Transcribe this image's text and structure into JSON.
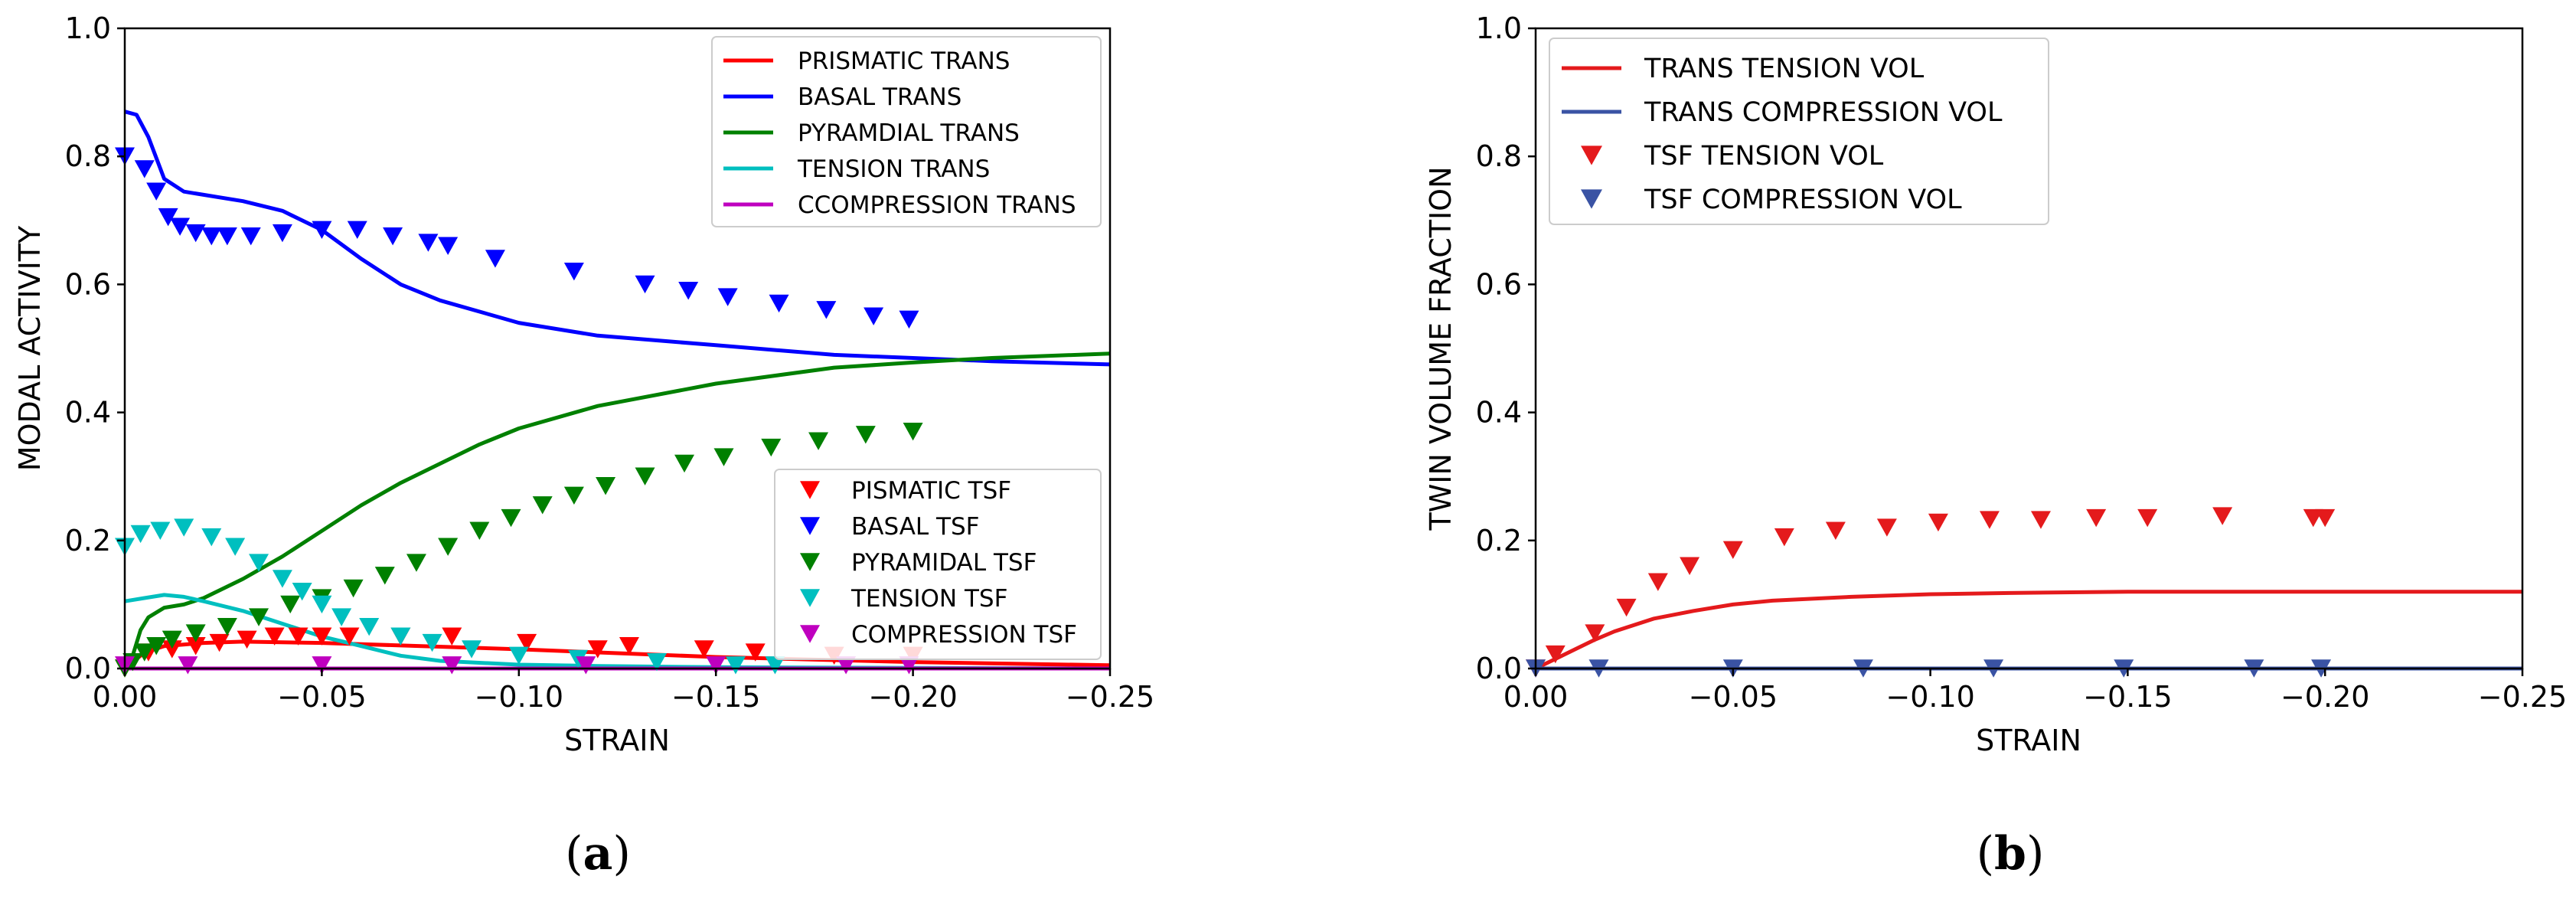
{
  "chart_data": [
    {
      "id": "a",
      "type": "line",
      "caption_letter": "a",
      "caption_open": "(",
      "caption_close": ")",
      "xlabel": "STRAIN",
      "ylabel": "MODAL ACTIVITY",
      "xlim": [
        0.0,
        -0.25
      ],
      "ylim": [
        0.0,
        1.0
      ],
      "xticks": [
        0.0,
        -0.05,
        -0.1,
        -0.15,
        -0.2,
        -0.25
      ],
      "xtick_labels": [
        "0.00",
        "−0.05",
        "−0.10",
        "−0.15",
        "−0.20",
        "−0.25"
      ],
      "yticks": [
        0.0,
        0.2,
        0.4,
        0.6,
        0.8,
        1.0
      ],
      "ytick_labels": [
        "0.0",
        "0.2",
        "0.4",
        "0.6",
        "0.8",
        "1.0"
      ],
      "legend_lines": {
        "position": "top-right",
        "entries": [
          "PRISMATIC TRANS",
          "BASAL TRANS",
          "PYRAMDIAL TRANS",
          "TENSION TRANS",
          "CCOMPRESSION TRANS"
        ]
      },
      "legend_markers": {
        "position": "lower-right",
        "entries": [
          "PISMATIC TSF",
          "BASAL TSF",
          "PYRAMIDAL TSF",
          "TENSION TSF",
          "COMPRESSION TSF"
        ]
      },
      "series": [
        {
          "name": "PRISMATIC TRANS",
          "kind": "line",
          "color": "#ff0000",
          "x": [
            0.0,
            -0.005,
            -0.01,
            -0.02,
            -0.03,
            -0.05,
            -0.07,
            -0.1,
            -0.15,
            -0.2,
            -0.25
          ],
          "y": [
            0.0,
            0.025,
            0.035,
            0.04,
            0.042,
            0.04,
            0.036,
            0.03,
            0.018,
            0.01,
            0.005
          ]
        },
        {
          "name": "BASAL TRANS",
          "kind": "line",
          "color": "#0000ff",
          "x": [
            0.0,
            -0.003,
            -0.006,
            -0.01,
            -0.015,
            -0.02,
            -0.03,
            -0.04,
            -0.05,
            -0.06,
            -0.07,
            -0.08,
            -0.1,
            -0.12,
            -0.15,
            -0.18,
            -0.2,
            -0.22,
            -0.25
          ],
          "y": [
            0.87,
            0.865,
            0.83,
            0.765,
            0.745,
            0.74,
            0.73,
            0.715,
            0.685,
            0.64,
            0.6,
            0.575,
            0.54,
            0.52,
            0.505,
            0.49,
            0.485,
            0.48,
            0.475
          ]
        },
        {
          "name": "PYRAMDIAL TRANS",
          "kind": "line",
          "color": "#008000",
          "x": [
            0.0,
            -0.002,
            -0.004,
            -0.006,
            -0.01,
            -0.015,
            -0.02,
            -0.03,
            -0.04,
            -0.05,
            -0.06,
            -0.07,
            -0.08,
            -0.09,
            -0.1,
            -0.12,
            -0.15,
            -0.18,
            -0.2,
            -0.22,
            -0.25
          ],
          "y": [
            0.0,
            0.02,
            0.06,
            0.08,
            0.095,
            0.1,
            0.11,
            0.14,
            0.175,
            0.215,
            0.255,
            0.29,
            0.32,
            0.35,
            0.375,
            0.41,
            0.445,
            0.47,
            0.478,
            0.485,
            0.492
          ]
        },
        {
          "name": "TENSION TRANS",
          "kind": "line",
          "color": "#00bfbf",
          "x": [
            0.0,
            -0.005,
            -0.01,
            -0.015,
            -0.02,
            -0.03,
            -0.04,
            -0.05,
            -0.06,
            -0.07,
            -0.08,
            -0.1,
            -0.12,
            -0.15,
            -0.2,
            -0.25
          ],
          "y": [
            0.105,
            0.11,
            0.115,
            0.112,
            0.105,
            0.09,
            0.07,
            0.05,
            0.035,
            0.02,
            0.012,
            0.006,
            0.004,
            0.002,
            0.001,
            0.0
          ]
        },
        {
          "name": "CCOMPRESSION TRANS",
          "kind": "line",
          "color": "#bf00bf",
          "x": [
            0.0,
            -0.25
          ],
          "y": [
            0.0,
            0.0
          ]
        },
        {
          "name": "PISMATIC TSF",
          "kind": "marker",
          "color": "#ff0000",
          "x": [
            0.0,
            -0.006,
            -0.012,
            -0.018,
            -0.024,
            -0.031,
            -0.038,
            -0.044,
            -0.05,
            -0.057,
            -0.07,
            -0.083,
            -0.102,
            -0.12,
            -0.128,
            -0.147,
            -0.16,
            -0.18,
            -0.2
          ],
          "y": [
            0.0,
            0.025,
            0.03,
            0.035,
            0.04,
            0.045,
            0.05,
            0.05,
            0.05,
            0.05,
            0.05,
            0.05,
            0.04,
            0.03,
            0.035,
            0.03,
            0.025,
            0.02,
            0.02
          ]
        },
        {
          "name": "BASAL TSF",
          "kind": "marker",
          "color": "#0000ff",
          "x": [
            0.0,
            -0.005,
            -0.008,
            -0.011,
            -0.014,
            -0.018,
            -0.022,
            -0.026,
            -0.032,
            -0.04,
            -0.05,
            -0.059,
            -0.068,
            -0.077,
            -0.082,
            -0.094,
            -0.114,
            -0.132,
            -0.143,
            -0.153,
            -0.166,
            -0.178,
            -0.19,
            -0.199
          ],
          "y": [
            0.8,
            0.78,
            0.745,
            0.705,
            0.69,
            0.68,
            0.675,
            0.675,
            0.675,
            0.68,
            0.685,
            0.685,
            0.675,
            0.665,
            0.66,
            0.64,
            0.62,
            0.6,
            0.59,
            0.58,
            0.57,
            0.56,
            0.55,
            0.545
          ]
        },
        {
          "name": "PYRAMIDAL TSF",
          "kind": "marker",
          "color": "#008000",
          "x": [
            0.0,
            -0.002,
            -0.005,
            -0.008,
            -0.012,
            -0.018,
            -0.026,
            -0.034,
            -0.042,
            -0.05,
            -0.058,
            -0.066,
            -0.074,
            -0.082,
            -0.09,
            -0.098,
            -0.106,
            -0.114,
            -0.122,
            -0.132,
            -0.142,
            -0.152,
            -0.164,
            -0.176,
            -0.188,
            -0.2
          ],
          "y": [
            0.0,
            0.01,
            0.025,
            0.035,
            0.045,
            0.055,
            0.065,
            0.08,
            0.1,
            0.11,
            0.125,
            0.145,
            0.165,
            0.19,
            0.215,
            0.235,
            0.255,
            0.27,
            0.285,
            0.3,
            0.32,
            0.33,
            0.345,
            0.355,
            0.365,
            0.37
          ]
        },
        {
          "name": "TENSION TSF",
          "kind": "marker",
          "color": "#00bfbf",
          "x": [
            0.0,
            -0.004,
            -0.009,
            -0.015,
            -0.022,
            -0.028,
            -0.034,
            -0.04,
            -0.045,
            -0.05,
            -0.055,
            -0.062,
            -0.07,
            -0.078,
            -0.088,
            -0.1,
            -0.115,
            -0.135,
            -0.155,
            -0.165
          ],
          "y": [
            0.19,
            0.21,
            0.215,
            0.22,
            0.205,
            0.19,
            0.165,
            0.14,
            0.12,
            0.1,
            0.08,
            0.065,
            0.05,
            0.04,
            0.03,
            0.02,
            0.015,
            0.01,
            0.005,
            0.005
          ]
        },
        {
          "name": "COMPRESSION TSF",
          "kind": "marker",
          "color": "#bf00bf",
          "x": [
            0.0,
            -0.016,
            -0.05,
            -0.083,
            -0.117,
            -0.15,
            -0.183,
            -0.199
          ],
          "y": [
            0.005,
            0.005,
            0.005,
            0.005,
            0.005,
            0.005,
            0.005,
            0.005
          ]
        }
      ]
    },
    {
      "id": "b",
      "type": "line",
      "caption_letter": "b",
      "caption_open": "(",
      "caption_close": ")",
      "xlabel": "STRAIN",
      "ylabel": "TWIN VOLUME FRACTION",
      "xlim": [
        0.0,
        -0.25
      ],
      "ylim": [
        0.0,
        1.0
      ],
      "xticks": [
        0.0,
        -0.05,
        -0.1,
        -0.15,
        -0.2,
        -0.25
      ],
      "xtick_labels": [
        "0.00",
        "−0.05",
        "−0.10",
        "−0.15",
        "−0.20",
        "−0.25"
      ],
      "yticks": [
        0.0,
        0.2,
        0.4,
        0.6,
        0.8,
        1.0
      ],
      "ytick_labels": [
        "0.0",
        "0.2",
        "0.4",
        "0.6",
        "0.8",
        "1.0"
      ],
      "legend": {
        "position": "top-left",
        "entries": [
          "TRANS TENSION VOL",
          "TRANS COMPRESSION VOL",
          "TSF TENSION VOL",
          "TSF COMPRESSION VOL"
        ]
      },
      "series": [
        {
          "name": "TRANS TENSION VOL",
          "kind": "line",
          "color": "#e41a1c",
          "x": [
            0.0,
            -0.005,
            -0.01,
            -0.015,
            -0.02,
            -0.03,
            -0.04,
            -0.05,
            -0.06,
            -0.08,
            -0.1,
            -0.12,
            -0.15,
            -0.2,
            -0.25
          ],
          "y": [
            0.0,
            0.015,
            0.03,
            0.045,
            0.058,
            0.078,
            0.09,
            0.1,
            0.106,
            0.112,
            0.116,
            0.118,
            0.12,
            0.12,
            0.12
          ]
        },
        {
          "name": "TRANS COMPRESSION VOL",
          "kind": "line",
          "color": "#3a53a4",
          "x": [
            0.0,
            -0.25
          ],
          "y": [
            0.0,
            0.0
          ]
        },
        {
          "name": "TSF TENSION VOL",
          "kind": "marker",
          "color": "#e41a1c",
          "x": [
            0.0,
            -0.005,
            -0.015,
            -0.023,
            -0.031,
            -0.039,
            -0.05,
            -0.063,
            -0.076,
            -0.089,
            -0.102,
            -0.115,
            -0.128,
            -0.142,
            -0.155,
            -0.174,
            -0.197,
            -0.2
          ],
          "y": [
            0.0,
            0.022,
            0.055,
            0.095,
            0.135,
            0.16,
            0.185,
            0.205,
            0.215,
            0.22,
            0.228,
            0.232,
            0.232,
            0.235,
            0.235,
            0.238,
            0.235,
            0.235
          ]
        },
        {
          "name": "TSF COMPRESSION VOL",
          "kind": "marker",
          "color": "#3a53a4",
          "x": [
            0.0,
            -0.016,
            -0.05,
            -0.083,
            -0.116,
            -0.149,
            -0.182,
            -0.199
          ],
          "y": [
            0.0,
            0.0,
            0.0,
            0.0,
            0.0,
            0.0,
            0.0,
            0.0
          ]
        }
      ]
    }
  ]
}
